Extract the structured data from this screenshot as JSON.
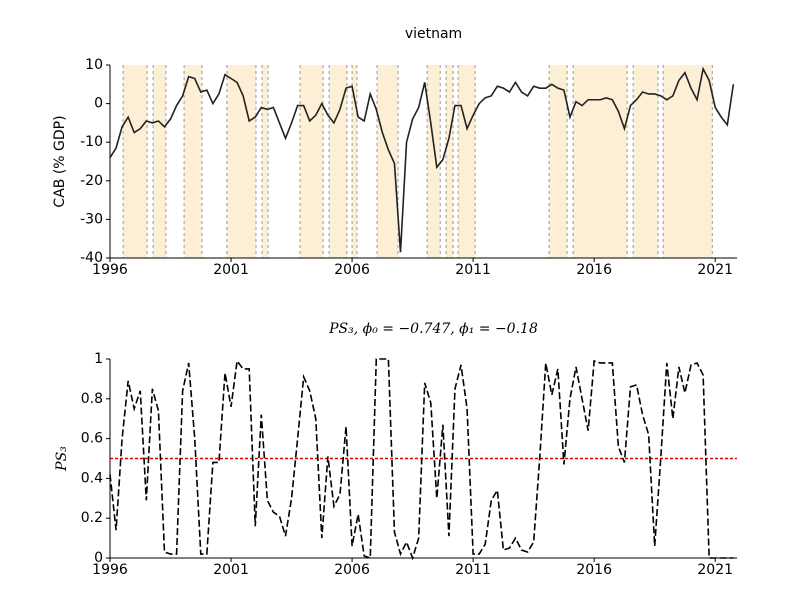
{
  "chart_data": [
    {
      "type": "line",
      "title": "vietnam",
      "ylabel": "CAB (% GDP)",
      "color": "#222222",
      "x": [
        1996,
        1996.25,
        1996.5,
        1996.75,
        1997,
        1997.25,
        1997.5,
        1997.75,
        1998,
        1998.25,
        1998.5,
        1998.75,
        1999,
        1999.25,
        1999.5,
        1999.75,
        2000,
        2000.25,
        2000.5,
        2000.75,
        2001,
        2001.25,
        2001.5,
        2001.75,
        2002,
        2002.25,
        2002.5,
        2002.75,
        2003,
        2003.25,
        2003.5,
        2003.75,
        2004,
        2004.25,
        2004.5,
        2004.75,
        2005,
        2005.25,
        2005.5,
        2005.75,
        2006,
        2006.25,
        2006.5,
        2006.75,
        2007,
        2007.25,
        2007.5,
        2007.75,
        2008,
        2008.25,
        2008.5,
        2008.75,
        2009,
        2009.25,
        2009.5,
        2009.75,
        2010,
        2010.25,
        2010.5,
        2010.75,
        2011,
        2011.25,
        2011.5,
        2011.75,
        2012,
        2012.25,
        2012.5,
        2012.75,
        2013,
        2013.25,
        2013.5,
        2013.75,
        2014,
        2014.25,
        2014.5,
        2014.75,
        2015,
        2015.25,
        2015.5,
        2015.75,
        2016,
        2016.25,
        2016.5,
        2016.75,
        2017,
        2017.25,
        2017.5,
        2017.75,
        2018,
        2018.25,
        2018.5,
        2018.75,
        2019,
        2019.25,
        2019.5,
        2019.75,
        2020,
        2020.25,
        2020.5,
        2020.75,
        2021,
        2021.25,
        2021.5,
        2021.75
      ],
      "values": [
        -14,
        -11.5,
        -6,
        -3.5,
        -7.5,
        -6.5,
        -4.5,
        -5,
        -4.5,
        -6,
        -4,
        -0.5,
        2,
        7,
        6.5,
        3,
        3.5,
        0,
        2.5,
        7.5,
        6.5,
        5.5,
        2,
        -4.5,
        -3.5,
        -1,
        -1.5,
        -1,
        -5,
        -9,
        -5,
        -0.5,
        -0.5,
        -4.5,
        -3,
        0,
        -3,
        -5,
        -1.5,
        4,
        4.5,
        -3.5,
        -4.5,
        2.5,
        -1.5,
        -7.5,
        -12,
        -15.5,
        -38.5,
        -10,
        -4,
        -1,
        5.5,
        -5,
        -16.5,
        -14.5,
        -9,
        -0.5,
        -0.5,
        -6.5,
        -3,
        0,
        1.5,
        2,
        4.5,
        4,
        3,
        5.5,
        3,
        2,
        4.5,
        4,
        4,
        5,
        4,
        3.5,
        -3.5,
        0.5,
        -0.5,
        1,
        1,
        1,
        1.5,
        1,
        -2,
        -6.5,
        -0.5,
        1,
        3,
        2.5,
        2.5,
        2,
        1,
        2,
        6,
        8,
        4,
        1,
        9,
        6,
        -1,
        -3.5,
        -5.5,
        5
      ],
      "shaded_regions": [
        [
          1996.54,
          1997.53
        ],
        [
          1997.78,
          1998.31
        ],
        [
          1999.06,
          1999.8
        ],
        [
          2000.83,
          2002.03
        ],
        [
          2002.28,
          2002.53
        ],
        [
          2003.85,
          2004.8
        ],
        [
          2005.05,
          2005.79
        ],
        [
          2006.0,
          2006.2
        ],
        [
          2007.03,
          2007.9
        ],
        [
          2009.1,
          2009.64
        ],
        [
          2009.88,
          2010.17
        ],
        [
          2010.38,
          2011.08
        ],
        [
          2014.14,
          2014.88
        ],
        [
          2015.13,
          2017.36
        ],
        [
          2017.61,
          2018.64
        ],
        [
          2018.85,
          2020.88
        ]
      ],
      "shade_color": "#fdefd6",
      "xlim": [
        1996,
        2021.9
      ],
      "xticks": [
        1996,
        2001,
        2006,
        2011,
        2016,
        2021
      ],
      "ylim": [
        -40,
        10
      ],
      "yticks": [
        -40,
        -30,
        -20,
        -10,
        0,
        10
      ]
    },
    {
      "type": "line",
      "title": "PS₃, ϕ₀ = −0.747, ϕ₁ = −0.18",
      "ylabel": "PS₃",
      "color": "#000000",
      "linestyle": "dashed",
      "x": [
        1996,
        1996.25,
        1996.5,
        1996.75,
        1997,
        1997.25,
        1997.5,
        1997.75,
        1998,
        1998.25,
        1998.5,
        1998.75,
        1999,
        1999.25,
        1999.5,
        1999.75,
        2000,
        2000.25,
        2000.5,
        2000.75,
        2001,
        2001.25,
        2001.5,
        2001.75,
        2002,
        2002.25,
        2002.5,
        2002.75,
        2003,
        2003.25,
        2003.5,
        2003.75,
        2004,
        2004.25,
        2004.5,
        2004.75,
        2005,
        2005.25,
        2005.5,
        2005.75,
        2006,
        2006.25,
        2006.5,
        2006.75,
        2007,
        2007.25,
        2007.5,
        2007.75,
        2008,
        2008.25,
        2008.5,
        2008.75,
        2009,
        2009.25,
        2009.5,
        2009.75,
        2010,
        2010.25,
        2010.5,
        2010.75,
        2011,
        2011.25,
        2011.5,
        2011.75,
        2012,
        2012.25,
        2012.5,
        2012.75,
        2013,
        2013.25,
        2013.5,
        2013.75,
        2014,
        2014.25,
        2014.5,
        2014.75,
        2015,
        2015.25,
        2015.5,
        2015.75,
        2016,
        2016.25,
        2016.5,
        2016.75,
        2017,
        2017.25,
        2017.5,
        2017.75,
        2018,
        2018.25,
        2018.5,
        2018.75,
        2019,
        2019.25,
        2019.5,
        2019.75,
        2020,
        2020.25,
        2020.5,
        2020.75,
        2021,
        2021.25,
        2021.5,
        2021.75
      ],
      "values": [
        0.42,
        0.14,
        0.6,
        0.89,
        0.75,
        0.84,
        0.29,
        0.85,
        0.74,
        0.03,
        0.02,
        0.02,
        0.84,
        0.98,
        0.6,
        0.02,
        0.02,
        0.48,
        0.48,
        0.93,
        0.76,
        0.99,
        0.95,
        0.95,
        0.16,
        0.72,
        0.29,
        0.23,
        0.21,
        0.11,
        0.3,
        0.6,
        0.91,
        0.84,
        0.7,
        0.1,
        0.51,
        0.26,
        0.32,
        0.66,
        0.06,
        0.22,
        0.01,
        0,
        1,
        1,
        1,
        0.13,
        0.02,
        0.08,
        0,
        0.1,
        0.88,
        0.78,
        0.3,
        0.67,
        0.11,
        0.85,
        0.97,
        0.75,
        0.02,
        0.02,
        0.07,
        0.29,
        0.34,
        0.04,
        0.05,
        0.1,
        0.04,
        0.03,
        0.08,
        0.5,
        0.98,
        0.82,
        0.95,
        0.47,
        0.8,
        0.96,
        0.8,
        0.64,
        0.99,
        0.98,
        0.98,
        0.98,
        0.56,
        0.48,
        0.86,
        0.87,
        0.72,
        0.62,
        0.06,
        0.5,
        0.98,
        0.7,
        0.96,
        0.83,
        0.97,
        0.98,
        0.92,
        0,
        0,
        0,
        0,
        0
      ],
      "threshold": {
        "value": 0.5,
        "color": "#e00000"
      },
      "xlim": [
        1996,
        2021.9
      ],
      "xticks": [
        1996,
        2001,
        2006,
        2011,
        2016,
        2021
      ],
      "ylim": [
        0,
        1
      ],
      "yticks": [
        0,
        0.2,
        0.4,
        0.6,
        0.8,
        1
      ]
    }
  ]
}
